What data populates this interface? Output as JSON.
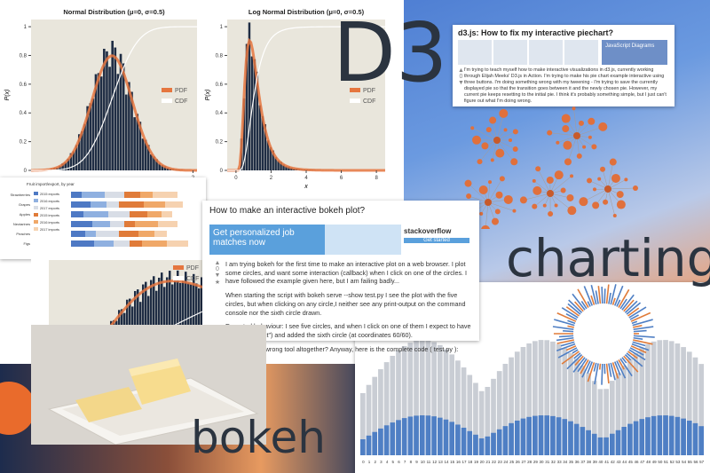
{
  "headlines": {
    "d3": "D3",
    "charting": "charting",
    "bokeh": "bokeh"
  },
  "plots": [
    {
      "title": "Normal Distribution (μ=0, σ=0.5)",
      "y_label": "P(x)",
      "legend": [
        "PDF",
        "CDF"
      ],
      "xlim": [
        -2,
        2.1
      ],
      "xticks": [
        2
      ],
      "ylim": [
        0,
        1.05
      ],
      "yticks": [
        0,
        0.2,
        0.4,
        0.6,
        0.8,
        1
      ]
    },
    {
      "title": "Log Normal Distribution (μ=0, σ=0.5)",
      "y_label": "P(x)",
      "x_label": "x",
      "legend": [
        "PDF",
        "CDF"
      ],
      "xlim": [
        -0.5,
        8.5
      ],
      "xticks": [
        0,
        2,
        4,
        6,
        8
      ],
      "ylim": [
        0,
        1.05
      ],
      "yticks": [
        0,
        0.2,
        0.4,
        0.6,
        0.8,
        1
      ]
    },
    {
      "legend": [
        "PDF",
        "CDF"
      ]
    }
  ],
  "d3_question": {
    "title": "d3.js: How to fix my interactive piechart?",
    "votes": "0",
    "thumb_text": "JavaScript Diagrams",
    "body": "I'm trying to teach myself how to make interactive visualizations in d3.js, currently working through Elijah Meeks' D3.js in Action. I'm trying to make his pie chart example interactive using three buttons. I'm doing something wrong with my tweening - I'm trying to save the currently displayed pie so that the transition goes between it and the newly chosen pie. However, my current pie keeps resetting to the initial pie. I think it's probably something simple, but I just can't figure out what I'm doing wrong."
  },
  "bokeh_question": {
    "title": "How to make an interactive bokeh plot?",
    "ad": {
      "headline": "Get personalized job matches now",
      "brand": "stackoverflow",
      "button": "Get started"
    },
    "votes": "0",
    "paragraphs": [
      "I am trying bokeh for the first time to make an interactive plot on a web browser. I plot some circles, and want some interaction (callback) when I click on one of the circles. I have followed the example given here, but I am failing badly...",
      "When starting the script with bokeh serve --show test.py I see the plot with the five circles, but when clicking on any circle,I neither see any print-output on the command console nor the sixth circle drawn.",
      "Expected behaviour: I see five circles, and when I click on one of them I expect to have a printout (\"test\") and added the sixth circle (at coordinates 60/60).",
      "Maybe its the wrong tool altogether? Anyway, here is the complete code ( test.py ):"
    ]
  },
  "stacked_chart": {
    "title": "Fruit import/export, by year",
    "categories": [
      "Strawberries",
      "Grapes",
      "Apples",
      "Nectarines",
      "Peaches",
      "Figs"
    ],
    "legend": [
      "2015 exports",
      "2016 exports",
      "2017 exports",
      "2015 imports",
      "2016 imports",
      "2017 imports"
    ]
  },
  "bar_chart": {
    "x_labels": [
      0,
      1,
      2,
      3,
      4,
      5,
      6,
      7,
      8,
      9,
      10,
      11,
      12,
      13,
      14,
      15,
      16,
      17,
      18,
      19,
      20,
      21,
      22,
      23,
      24,
      25,
      26,
      27,
      28,
      29,
      30,
      31,
      32,
      33,
      34,
      35,
      36,
      37,
      38,
      39,
      40,
      41,
      42,
      43,
      44,
      45,
      46,
      47,
      48,
      49,
      50,
      51,
      52,
      53,
      54,
      55,
      56,
      57
    ]
  }
}
